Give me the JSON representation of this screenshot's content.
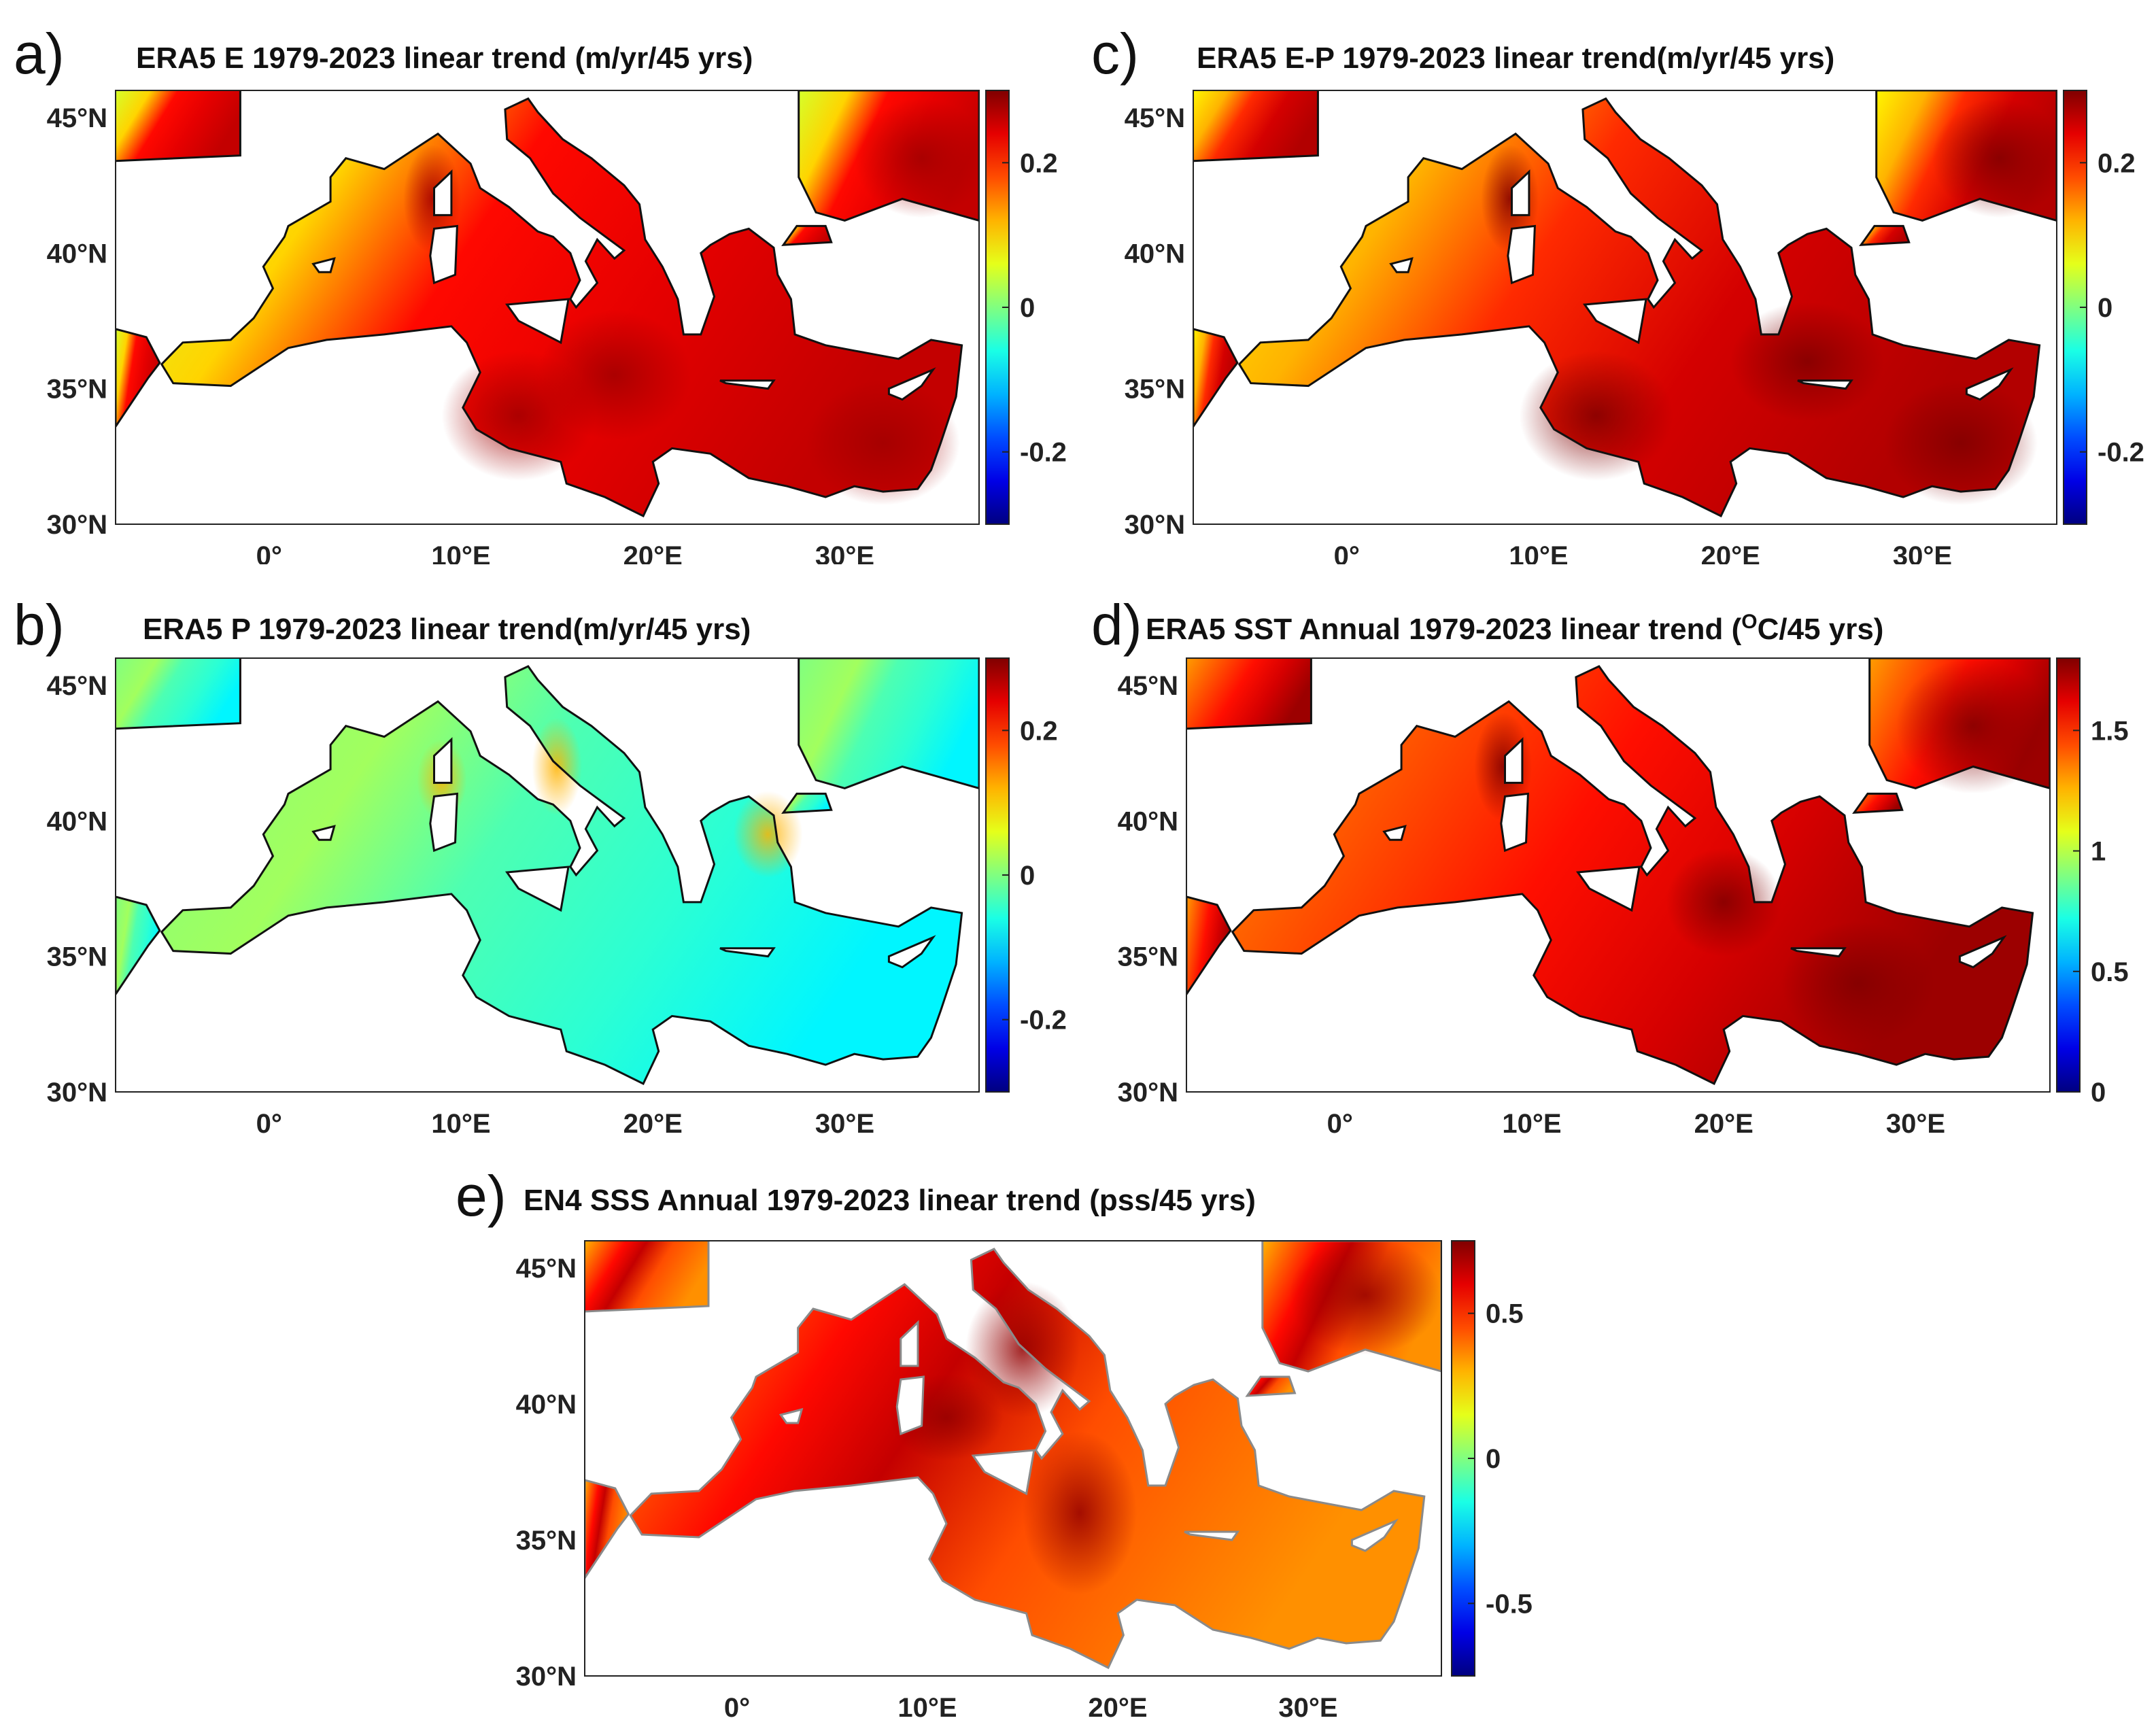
{
  "figure": {
    "panels": [
      {
        "id": "a",
        "letter": "a)",
        "title": "ERA5 E 1979-2023 linear trend (m/yr/45 yrs)",
        "variable": "Evaporation trend",
        "colorbar_ticks": [
          "0.2",
          "0",
          "-0.2"
        ],
        "colorbar_tick_values": [
          0.2,
          0,
          -0.2
        ],
        "colorbar_range": [
          -0.3,
          0.3
        ],
        "sea_field": "warm-high"
      },
      {
        "id": "b",
        "letter": "b)",
        "title": "ERA5 P 1979-2023 linear trend(m/yr/45 yrs)",
        "variable": "Precipitation trend",
        "colorbar_ticks": [
          "0.2",
          "0",
          "-0.2"
        ],
        "colorbar_tick_values": [
          0.2,
          0,
          -0.2
        ],
        "colorbar_range": [
          -0.3,
          0.3
        ],
        "sea_field": "near-zero"
      },
      {
        "id": "c",
        "letter": "c)",
        "title": "ERA5 E-P 1979-2023 linear trend(m/yr/45 yrs)",
        "variable": "E-P trend",
        "colorbar_ticks": [
          "0.2",
          "0",
          "-0.2"
        ],
        "colorbar_tick_values": [
          0.2,
          0,
          -0.2
        ],
        "colorbar_range": [
          -0.3,
          0.3
        ],
        "sea_field": "warm-high"
      },
      {
        "id": "d",
        "letter": "d)",
        "title": "ERA5 SST Annual 1979-2023 linear trend (",
        "title_sup": "O",
        "title_tail": "C/45 yrs)",
        "variable": "SST trend",
        "colorbar_ticks": [
          "1.5",
          "1",
          "0.5",
          "0"
        ],
        "colorbar_tick_values": [
          1.5,
          1,
          0.5,
          0
        ],
        "colorbar_range": [
          0,
          1.8
        ],
        "sea_field": "warm-very-high"
      },
      {
        "id": "e",
        "letter": "e)",
        "title": "EN4 SSS Annual 1979-2023 linear trend (pss/45 yrs)",
        "variable": "SSS trend",
        "colorbar_ticks": [
          "0.5",
          "0",
          "-0.5"
        ],
        "colorbar_tick_values": [
          0.5,
          0,
          -0.5
        ],
        "colorbar_range": [
          -0.75,
          0.75
        ],
        "sea_field": "coarse-warm"
      }
    ],
    "lat_ticks": [
      "45°N",
      "40°N",
      "35°N",
      "30°N"
    ],
    "lat_values": [
      45,
      40,
      35,
      30
    ],
    "lon_ticks": [
      "0°",
      "10°E",
      "20°E",
      "30°E"
    ],
    "lon_values": [
      0,
      10,
      20,
      30
    ],
    "extent": {
      "lon": [
        -8,
        37
      ],
      "lat": [
        30,
        46
      ]
    },
    "colormap": "jet",
    "colors": {
      "coast": "#111111",
      "coast_e": "#8a8a8a",
      "land": "#ffffff",
      "frame": "#222222"
    }
  }
}
